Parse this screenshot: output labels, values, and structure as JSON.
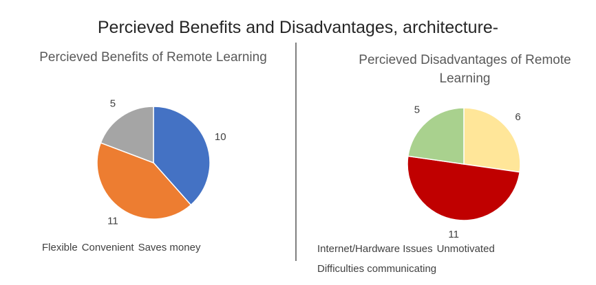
{
  "title": "Percieved Benefits and Disadvantages, architecture-",
  "chart_data": [
    {
      "type": "pie",
      "title": "Percieved Benefits of Remote Learning",
      "categories": [
        "Flexible",
        "Convenient",
        "Saves money"
      ],
      "values": [
        10,
        11,
        5
      ],
      "colors": [
        "#4472c4",
        "#ed7d31",
        "#a5a5a5"
      ],
      "legend": "bottom"
    },
    {
      "type": "pie",
      "title": "Percieved Disadvantages of Remote Learning",
      "categories": [
        "Internet/Hardware Issues",
        "Unmotivated",
        "Difficulties communicating"
      ],
      "values": [
        6,
        11,
        5
      ],
      "colors": [
        "#ffe699",
        "#c00000",
        "#a9d18e"
      ],
      "legend": "bottom"
    }
  ]
}
